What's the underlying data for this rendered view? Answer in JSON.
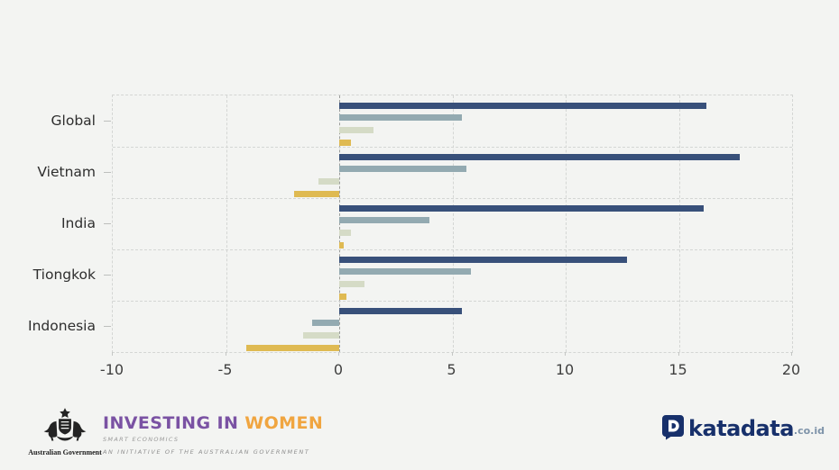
{
  "page": {
    "background": "#f3f4f2"
  },
  "chart_data": {
    "type": "bar",
    "orientation": "horizontal",
    "title": "",
    "categories": [
      "Global",
      "Vietnam",
      "India",
      "Tiongkok",
      "Indonesia"
    ],
    "series": [
      {
        "color": "#38507a",
        "values": [
          16.2,
          17.7,
          16.1,
          12.7,
          5.4
        ]
      },
      {
        "color": "#93aab1",
        "values": [
          5.4,
          5.6,
          4.0,
          5.8,
          -1.2
        ]
      },
      {
        "color": "#d5dbc6",
        "values": [
          1.5,
          -0.9,
          0.5,
          1.1,
          -1.6
        ]
      },
      {
        "color": "#dfba52",
        "values": [
          0.5,
          -2.0,
          0.2,
          0.3,
          -4.1
        ]
      }
    ],
    "xlim": [
      -10,
      20
    ],
    "x_ticks": [
      -10,
      -5,
      0,
      5,
      10,
      15,
      20
    ],
    "grid": "dashed",
    "legend_position": "none"
  },
  "footer": {
    "aus_gov_caption": "Australian Government",
    "iw_line1_part1": "INVESTING IN ",
    "iw_line1_part2": "WOMEN",
    "iw_line2": "SMART ECONOMICS",
    "iw_line3": "AN INITIATIVE OF THE AUSTRALIAN GOVERNMENT",
    "katadata_brand": "katadata",
    "katadata_suffix": ".co.id"
  }
}
